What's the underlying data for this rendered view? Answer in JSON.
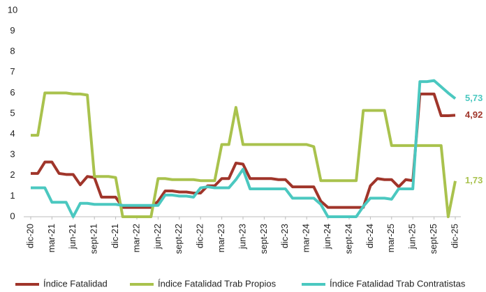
{
  "chart_data": {
    "type": "line",
    "categories": [
      "dic-20",
      null,
      null,
      "mar-21",
      null,
      null,
      "jun-21",
      null,
      null,
      "sept-21",
      null,
      null,
      "dic-21",
      null,
      null,
      "mar-22",
      null,
      null,
      "jun-22",
      null,
      null,
      "sept-22",
      null,
      null,
      "dic-22",
      null,
      null,
      "mar-23",
      null,
      null,
      "jun-23",
      null,
      null,
      "sept-23",
      null,
      null,
      "dic-23",
      null,
      null,
      "mar-24",
      null,
      null,
      "jun-24",
      null,
      null,
      "sept-24",
      null,
      null,
      "dic-24",
      null,
      null,
      "mar-25",
      null,
      null,
      "jun-25",
      null,
      null,
      "sept-25",
      null,
      null,
      "dic-25"
    ],
    "series": [
      {
        "name": "Índice Fatalidad",
        "color": "#a0352a",
        "end_label": "4,92",
        "values": [
          2.1,
          2.1,
          2.65,
          2.65,
          2.1,
          2.05,
          2.05,
          1.55,
          1.95,
          1.9,
          0.95,
          0.95,
          0.95,
          0.45,
          0.45,
          0.45,
          0.45,
          0.45,
          0.75,
          1.25,
          1.25,
          1.2,
          1.2,
          1.15,
          1.15,
          1.5,
          1.5,
          1.85,
          1.85,
          2.6,
          2.55,
          1.85,
          1.85,
          1.85,
          1.85,
          1.8,
          1.8,
          1.45,
          1.45,
          1.45,
          1.45,
          0.75,
          0.45,
          0.45,
          0.45,
          0.45,
          0.45,
          0.45,
          1.5,
          1.85,
          1.8,
          1.8,
          1.45,
          1.8,
          1.75,
          5.95,
          5.95,
          5.95,
          4.9,
          4.9,
          4.92
        ]
      },
      {
        "name": "Índice Fatalidad Trab Propios",
        "color": "#a9c24d",
        "end_label": "1,73",
        "values": [
          3.95,
          3.95,
          6.0,
          6.0,
          6.0,
          6.0,
          5.95,
          5.95,
          5.9,
          1.95,
          1.95,
          1.95,
          1.9,
          0,
          0,
          0,
          0,
          0,
          1.85,
          1.85,
          1.8,
          1.8,
          1.8,
          1.8,
          1.75,
          1.75,
          1.75,
          3.5,
          3.5,
          5.3,
          3.5,
          3.5,
          3.5,
          3.5,
          3.5,
          3.5,
          3.5,
          3.5,
          3.5,
          3.5,
          3.4,
          1.75,
          1.75,
          1.75,
          1.75,
          1.75,
          1.75,
          5.15,
          5.15,
          5.15,
          5.15,
          3.45,
          3.45,
          3.45,
          3.45,
          3.45,
          3.45,
          3.45,
          3.45,
          0,
          1.73
        ]
      },
      {
        "name": "Índice Fatalidad Trab Contratistas",
        "color": "#4bc8c0",
        "end_label": "5,73",
        "values": [
          1.4,
          1.4,
          1.4,
          0.7,
          0.7,
          0.7,
          0,
          0.65,
          0.65,
          0.6,
          0.6,
          0.6,
          0.6,
          0.55,
          0.55,
          0.55,
          0.55,
          0.55,
          0.55,
          1.05,
          1.05,
          1.0,
          1.0,
          0.95,
          1.4,
          1.45,
          1.4,
          1.4,
          1.4,
          1.8,
          2.3,
          1.35,
          1.35,
          1.35,
          1.35,
          1.35,
          1.35,
          0.9,
          0.9,
          0.9,
          0.9,
          0.6,
          0,
          0,
          0,
          0,
          0,
          0.5,
          0.9,
          0.9,
          0.9,
          0.85,
          1.35,
          1.35,
          1.35,
          6.55,
          6.55,
          6.6,
          6.3,
          6.0,
          5.73
        ]
      }
    ],
    "ylim": [
      0,
      10
    ],
    "yticks": [
      0,
      1,
      2,
      3,
      4,
      5,
      6,
      7,
      8,
      9,
      10
    ],
    "grid": false,
    "legend": "bottom"
  }
}
